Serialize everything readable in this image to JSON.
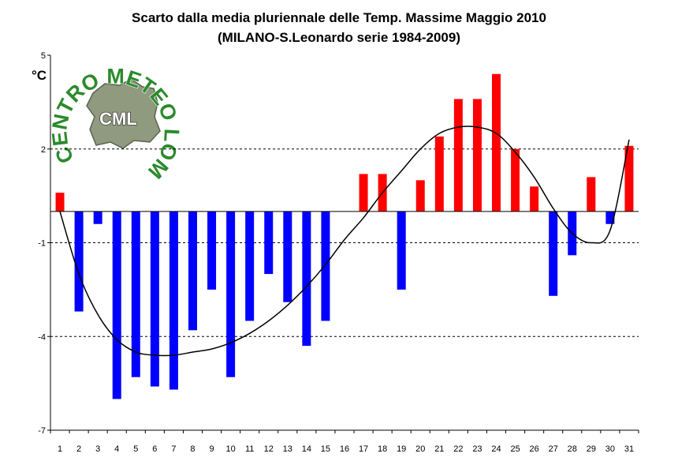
{
  "chart_data": {
    "type": "bar",
    "title": "Scarto dalla media pluriennale delle Temp. Massime Maggio 2010",
    "subtitle": "(MILANO-S.Leonardo serie 1984-2009)",
    "ylabel": "°C",
    "xlabel": "",
    "ylim": [
      -7,
      5
    ],
    "yticks": [
      5,
      2,
      -1,
      -4,
      -7
    ],
    "grid": "horizontal dashed at 2, -1, -4",
    "legend": "none",
    "categories": [
      "1",
      "2",
      "3",
      "4",
      "5",
      "6",
      "7",
      "8",
      "9",
      "10",
      "11",
      "12",
      "13",
      "14",
      "15",
      "16",
      "17",
      "18",
      "19",
      "20",
      "21",
      "22",
      "23",
      "24",
      "25",
      "26",
      "27",
      "28",
      "29",
      "30",
      "31"
    ],
    "values": [
      0.6,
      -3.2,
      -0.4,
      -6.0,
      -5.3,
      -5.6,
      -5.7,
      -3.8,
      -2.5,
      -5.3,
      -3.5,
      -2.0,
      -2.9,
      -4.3,
      -3.5,
      0,
      1.2,
      1.2,
      -2.5,
      1.0,
      2.4,
      3.6,
      3.6,
      4.4,
      2.0,
      0.8,
      -2.7,
      -1.4,
      1.1,
      -0.4,
      2.1
    ],
    "trend_line": {
      "type": "polynomial fit",
      "x": [
        1,
        2,
        3,
        4,
        5,
        6,
        7,
        8,
        9,
        10,
        11,
        12,
        13,
        14,
        15,
        16,
        17,
        18,
        19,
        20,
        21,
        22,
        23,
        24,
        25,
        26,
        27,
        28,
        29,
        30,
        31
      ],
      "y": [
        0.0,
        -2.0,
        -3.3,
        -4.1,
        -4.5,
        -4.6,
        -4.6,
        -4.5,
        -4.4,
        -4.2,
        -3.9,
        -3.5,
        -3.0,
        -2.4,
        -1.7,
        -0.9,
        -0.2,
        0.6,
        1.3,
        2.0,
        2.5,
        2.7,
        2.7,
        2.5,
        1.9,
        1.1,
        0.1,
        -0.7,
        -1.0,
        -0.6,
        2.3
      ]
    },
    "colors": {
      "positive": "#ff0000",
      "negative": "#0000ff",
      "trend": "#000000",
      "grid": "#000000",
      "logo_green": "#2c8a2c"
    }
  },
  "logo": {
    "ring_text": "CENTRO METEO LOMBARDO",
    "monogram": "CML"
  }
}
